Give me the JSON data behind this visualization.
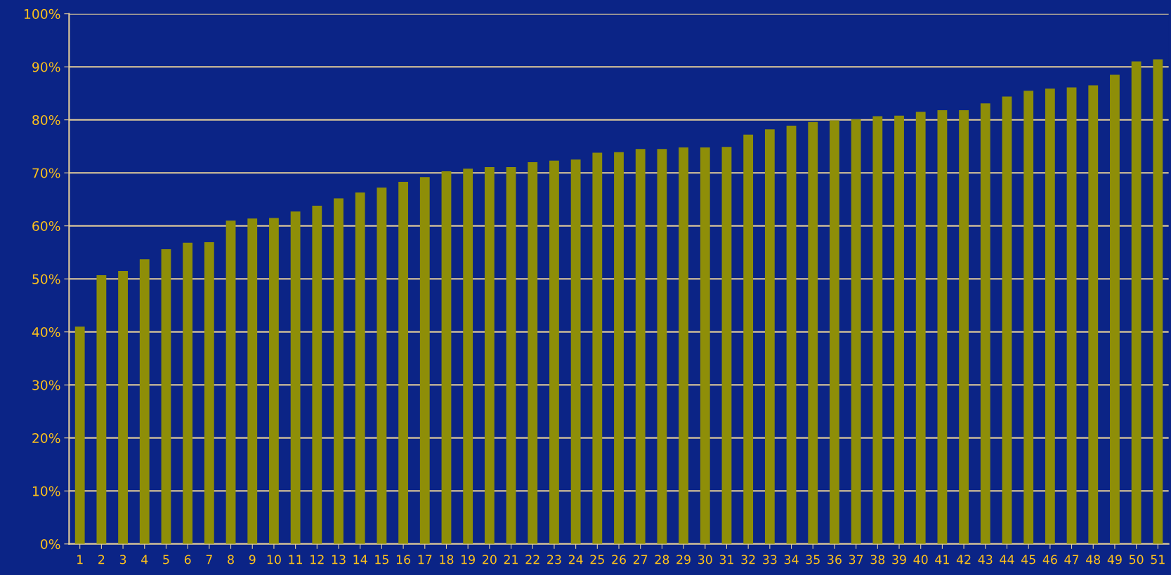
{
  "chart_data": {
    "type": "bar",
    "categories": [
      "1",
      "2",
      "3",
      "4",
      "5",
      "6",
      "7",
      "8",
      "9",
      "10",
      "11",
      "12",
      "13",
      "14",
      "15",
      "16",
      "17",
      "18",
      "19",
      "20",
      "21",
      "22",
      "23",
      "24",
      "25",
      "26",
      "27",
      "28",
      "29",
      "30",
      "31",
      "32",
      "33",
      "34",
      "35",
      "36",
      "37",
      "38",
      "39",
      "40",
      "41",
      "42",
      "43",
      "44",
      "45",
      "46",
      "47",
      "48",
      "49",
      "50",
      "51"
    ],
    "values": [
      41.0,
      50.7,
      51.5,
      53.7,
      55.6,
      56.8,
      56.9,
      61.0,
      61.4,
      61.5,
      62.7,
      63.8,
      65.2,
      66.3,
      67.2,
      68.3,
      69.2,
      70.3,
      70.8,
      71.1,
      71.1,
      72.0,
      72.3,
      72.5,
      73.8,
      73.9,
      74.5,
      74.5,
      74.8,
      74.8,
      74.9,
      77.2,
      78.2,
      78.9,
      79.6,
      79.9,
      80.1,
      80.7,
      80.8,
      81.5,
      81.8,
      81.8,
      83.1,
      84.4,
      85.5,
      85.9,
      86.1,
      86.5,
      88.5,
      91.0,
      91.4
    ],
    "color": "#8e8e08",
    "ylim": [
      0,
      100
    ],
    "yticks": [
      {
        "value": 0,
        "label": "0%"
      },
      {
        "value": 10,
        "label": "10%"
      },
      {
        "value": 20,
        "label": "20%"
      },
      {
        "value": 30,
        "label": "30%"
      },
      {
        "value": 40,
        "label": "40%"
      },
      {
        "value": 50,
        "label": "50%"
      },
      {
        "value": 60,
        "label": "60%"
      },
      {
        "value": 70,
        "label": "70%"
      },
      {
        "value": 80,
        "label": "80%"
      },
      {
        "value": 90,
        "label": "90%"
      },
      {
        "value": 100,
        "label": "100%"
      }
    ],
    "grid": "y"
  }
}
